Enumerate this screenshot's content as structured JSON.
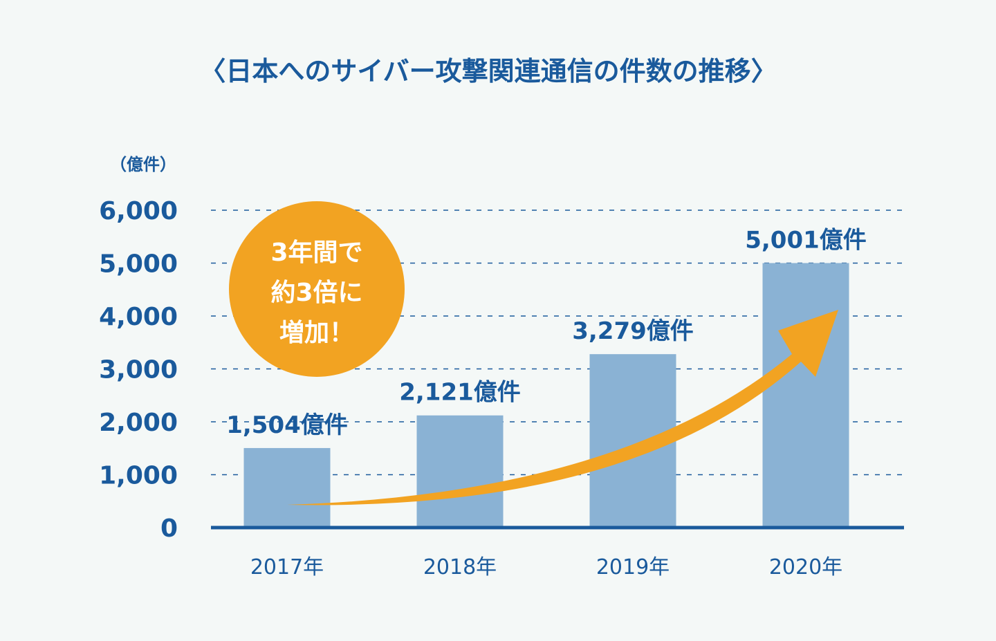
{
  "chart_data": {
    "type": "bar",
    "title": "〈日本へのサイバー攻撃関連通信の件数の推移〉",
    "ylabel": "（億件）",
    "xlabel": "",
    "categories": [
      "2017年",
      "2018年",
      "2019年",
      "2020年"
    ],
    "values": [
      1504,
      2121,
      3279,
      5001
    ],
    "value_labels": [
      "1,504億件",
      "2,121億件",
      "3,279億件",
      "5,001億件"
    ],
    "ylim": [
      0,
      6000
    ],
    "yticks": [
      0,
      1000,
      2000,
      3000,
      4000,
      5000,
      6000
    ],
    "ytick_labels": [
      "0",
      "1,000",
      "2,000",
      "3,000",
      "4,000",
      "5,000",
      "6,000"
    ],
    "grid": "dashed-horizontal",
    "annotation": {
      "lines": [
        "3年間で",
        "約3倍に",
        "増加！"
      ]
    },
    "trend_arrow": "increasing"
  },
  "colors": {
    "background": "#f4f8f7",
    "bar": "#8ab2d4",
    "text": "#1a5a9c",
    "axis": "#1a5a9c",
    "grid": "#1a5a9c",
    "accent": "#f2a322"
  }
}
